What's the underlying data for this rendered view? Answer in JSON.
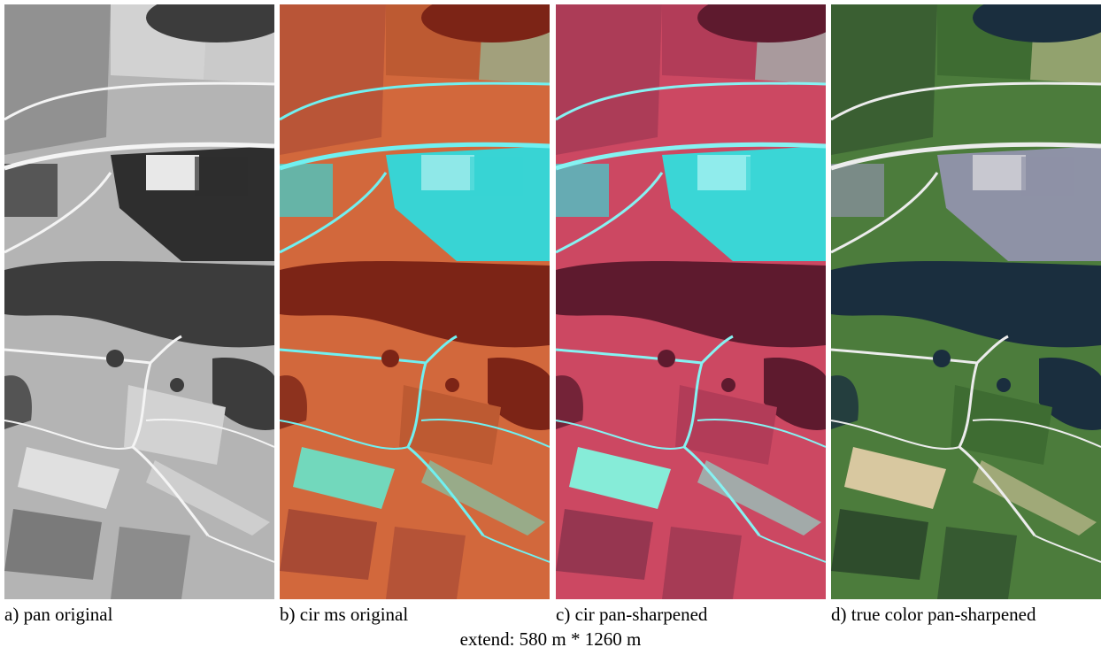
{
  "panels": [
    {
      "caption": "a) pan original"
    },
    {
      "caption": "b) cir ms original"
    },
    {
      "caption": "c) cir pan-sharpened"
    },
    {
      "caption": "d) true color pan-sharpened"
    }
  ],
  "footer": "extend: 580 m * 1260 m"
}
